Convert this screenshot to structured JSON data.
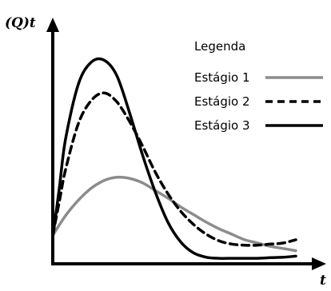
{
  "chart_data": {
    "type": "line",
    "title": "",
    "xlabel": "t",
    "ylabel": "(Q)t",
    "xlim": [
      0,
      10
    ],
    "ylim": [
      0,
      10
    ],
    "grid": false,
    "ticks": false,
    "legend": {
      "title": "Legenda",
      "placement": "top-right"
    },
    "series": [
      {
        "name": "Estágio 1",
        "color": "#8c8c8c",
        "dash": "solid",
        "width": 3.5,
        "x": [
          0,
          0.5,
          1,
          1.5,
          2,
          2.5,
          3,
          3.5,
          4,
          4.5,
          5,
          5.5,
          6,
          6.5,
          7,
          7.5,
          8,
          8.5,
          9,
          9.5
        ],
        "y": [
          1.3,
          2.2,
          2.9,
          3.45,
          3.8,
          3.95,
          3.9,
          3.7,
          3.35,
          3.0,
          2.6,
          2.25,
          1.9,
          1.6,
          1.35,
          1.1,
          0.95,
          0.8,
          0.7,
          0.6
        ]
      },
      {
        "name": "Estágio 2",
        "color": "#000000",
        "dash": "dashed",
        "width": 3.5,
        "x": [
          0,
          0.25,
          0.5,
          1,
          1.5,
          2,
          2.5,
          3,
          3.5,
          4,
          4.5,
          5,
          5.5,
          6,
          6.5,
          7,
          7.5,
          8,
          8.5,
          9,
          9.5
        ],
        "y": [
          1.3,
          2.8,
          4.3,
          6.4,
          7.45,
          7.8,
          7.4,
          6.5,
          5.4,
          4.2,
          3.2,
          2.4,
          1.8,
          1.35,
          1.05,
          0.9,
          0.85,
          0.85,
          0.9,
          0.95,
          1.1
        ]
      },
      {
        "name": "Estágio 3",
        "color": "#000000",
        "dash": "solid",
        "width": 3.5,
        "x": [
          0,
          0.25,
          0.5,
          1,
          1.5,
          2,
          2.5,
          3,
          3.5,
          4,
          4.5,
          5,
          5.5,
          6,
          6.5,
          7,
          7.5,
          8,
          8.5,
          9,
          9.5
        ],
        "y": [
          1.2,
          3.4,
          5.7,
          8.2,
          9.2,
          9.3,
          8.6,
          6.9,
          5.0,
          3.3,
          1.9,
          1.0,
          0.5,
          0.3,
          0.25,
          0.25,
          0.25,
          0.25,
          0.28,
          0.3,
          0.35
        ]
      }
    ]
  }
}
